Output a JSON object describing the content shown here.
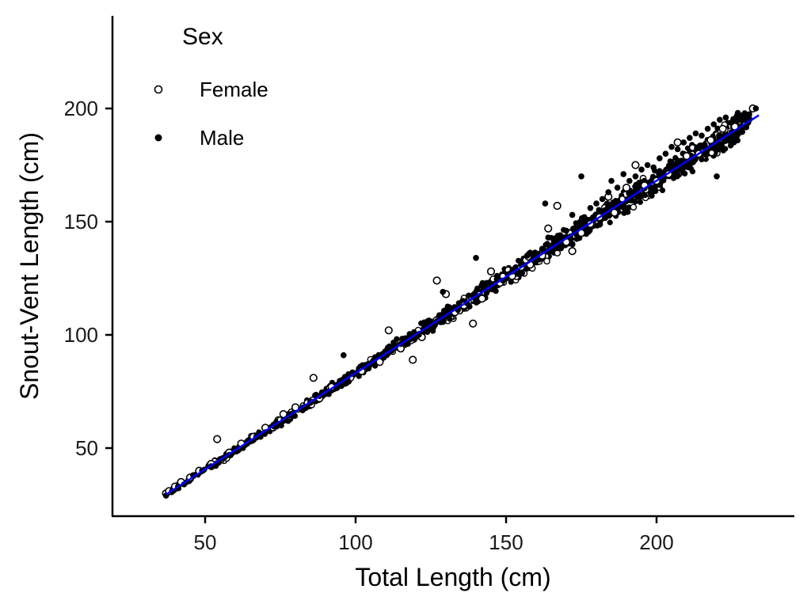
{
  "chart_data": {
    "type": "scatter",
    "xlabel": "Total Length (cm)",
    "ylabel": "Snout-Vent Length (cm)",
    "xlim": [
      20,
      245
    ],
    "ylim": [
      20,
      240
    ],
    "x_ticks": [
      50,
      100,
      150,
      200
    ],
    "y_ticks": [
      50,
      100,
      150,
      200
    ],
    "x_tick_labels": [
      "50",
      "100",
      "150",
      "200"
    ],
    "y_tick_labels": [
      "50",
      "100",
      "150",
      "200"
    ],
    "grid": false,
    "legend": {
      "title": "Sex",
      "placement": "top-left",
      "entries": [
        {
          "label": "Female",
          "marker": "open-circle",
          "color": "#000000"
        },
        {
          "label": "Male",
          "marker": "filled-circle",
          "color": "#000000"
        }
      ]
    },
    "series": [
      {
        "name": "Female",
        "marker": "open-circle",
        "points": [
          [
            37,
            30
          ],
          [
            38,
            31
          ],
          [
            40,
            33
          ],
          [
            42,
            35
          ],
          [
            45,
            37
          ],
          [
            48,
            40
          ],
          [
            52,
            43
          ],
          [
            54,
            54
          ],
          [
            58,
            48
          ],
          [
            62,
            52
          ],
          [
            66,
            55
          ],
          [
            70,
            59
          ],
          [
            73,
            60
          ],
          [
            76,
            65
          ],
          [
            80,
            68
          ],
          [
            86,
            81
          ],
          [
            88,
            72
          ],
          [
            92,
            77
          ],
          [
            97,
            80
          ],
          [
            102,
            84
          ],
          [
            108,
            88
          ],
          [
            111,
            102
          ],
          [
            115,
            94
          ],
          [
            119,
            89
          ],
          [
            122,
            99
          ],
          [
            127,
            124
          ],
          [
            130,
            118
          ],
          [
            133,
            110
          ],
          [
            136,
            113
          ],
          [
            139,
            105
          ],
          [
            142,
            116
          ],
          [
            145,
            128
          ],
          [
            148,
            123
          ],
          [
            152,
            126
          ],
          [
            155,
            130
          ],
          [
            158,
            131
          ],
          [
            162,
            135
          ],
          [
            164,
            147
          ],
          [
            167,
            157
          ],
          [
            170,
            141
          ],
          [
            172,
            137
          ],
          [
            175,
            145
          ],
          [
            178,
            149
          ],
          [
            181,
            152
          ],
          [
            184,
            161
          ],
          [
            186,
            154
          ],
          [
            190,
            165
          ],
          [
            193,
            175
          ],
          [
            196,
            166
          ],
          [
            200,
            168
          ],
          [
            204,
            171
          ],
          [
            207,
            185
          ],
          [
            210,
            179
          ],
          [
            214,
            180
          ],
          [
            218,
            186
          ],
          [
            222,
            191
          ],
          [
            226,
            192
          ],
          [
            232,
            200
          ]
        ]
      },
      {
        "name": "Male",
        "marker": "filled-circle",
        "points": [
          [
            37,
            29
          ],
          [
            39,
            31
          ],
          [
            41,
            33
          ],
          [
            43,
            34
          ],
          [
            46,
            38
          ],
          [
            49,
            40
          ],
          [
            52,
            42
          ],
          [
            55,
            45
          ],
          [
            58,
            47
          ],
          [
            61,
            50
          ],
          [
            64,
            53
          ],
          [
            67,
            55
          ],
          [
            70,
            57
          ],
          [
            73,
            60
          ],
          [
            76,
            62
          ],
          [
            79,
            65
          ],
          [
            82,
            67
          ],
          [
            85,
            70
          ],
          [
            88,
            73
          ],
          [
            91,
            75
          ],
          [
            94,
            78
          ],
          [
            97,
            80
          ],
          [
            100,
            83
          ],
          [
            103,
            86
          ],
          [
            106,
            88
          ],
          [
            109,
            91
          ],
          [
            112,
            93
          ],
          [
            115,
            96
          ],
          [
            118,
            98
          ],
          [
            121,
            100
          ],
          [
            124,
            103
          ],
          [
            127,
            106
          ],
          [
            129,
            119
          ],
          [
            131,
            109
          ],
          [
            134,
            111
          ],
          [
            137,
            114
          ],
          [
            140,
            117
          ],
          [
            142,
            122
          ],
          [
            144,
            120
          ],
          [
            147,
            126
          ],
          [
            149,
            124
          ],
          [
            152,
            128
          ],
          [
            155,
            131
          ],
          [
            157,
            135
          ],
          [
            160,
            134
          ],
          [
            162,
            138
          ],
          [
            164,
            143
          ],
          [
            166,
            141
          ],
          [
            168,
            144
          ],
          [
            170,
            146
          ],
          [
            172,
            153
          ],
          [
            174,
            149
          ],
          [
            176,
            152
          ],
          [
            178,
            156
          ],
          [
            180,
            158
          ],
          [
            182,
            160
          ],
          [
            184,
            163
          ],
          [
            185,
            168
          ],
          [
            187,
            165
          ],
          [
            189,
            171
          ],
          [
            191,
            168
          ],
          [
            193,
            170
          ],
          [
            195,
            173
          ],
          [
            197,
            175
          ],
          [
            199,
            174
          ],
          [
            201,
            178
          ],
          [
            203,
            180
          ],
          [
            205,
            183
          ],
          [
            207,
            182
          ],
          [
            209,
            185
          ],
          [
            211,
            187
          ],
          [
            213,
            189
          ],
          [
            215,
            188
          ],
          [
            217,
            191
          ],
          [
            219,
            193
          ],
          [
            221,
            195
          ],
          [
            223,
            196
          ],
          [
            225,
            194
          ],
          [
            227,
            198
          ],
          [
            230,
            197
          ],
          [
            233,
            200
          ],
          [
            220,
            170
          ],
          [
            163,
            158
          ],
          [
            175,
            170
          ],
          [
            140,
            134
          ],
          [
            96,
            91
          ]
        ]
      }
    ],
    "trend_line": {
      "color": "#0000ff",
      "x": [
        37,
        234
      ],
      "y": [
        29.5,
        197
      ]
    }
  }
}
